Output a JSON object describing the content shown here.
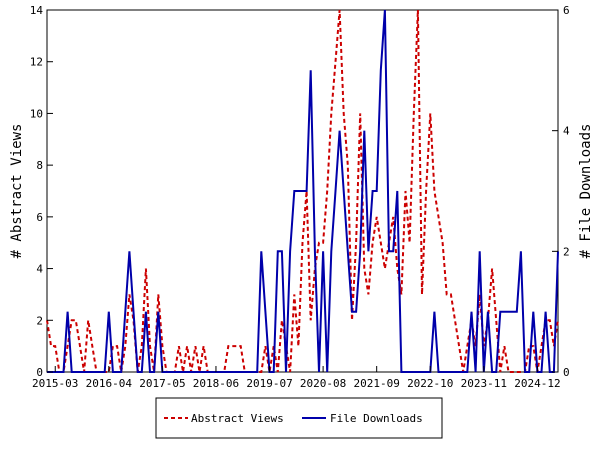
{
  "chart_data": {
    "type": "line",
    "title": "",
    "xlabel": "",
    "ylabel_left": "# Abstract Views",
    "ylabel_right": "# File Downloads",
    "x_tick_labels": [
      "2015-03",
      "2016-04",
      "2017-05",
      "2018-06",
      "2019-07",
      "2020-08",
      "2021-09",
      "2022-10",
      "2023-11",
      "2024-12"
    ],
    "x_range": [
      "2015-01",
      "2025-05"
    ],
    "ylim_left": [
      0,
      14
    ],
    "ylim_right": [
      0,
      6
    ],
    "y_ticks_left": [
      0,
      2,
      4,
      6,
      8,
      10,
      12,
      14
    ],
    "y_ticks_right": [
      0,
      2,
      4,
      6
    ],
    "grid": false,
    "legend_position": "bottom-center",
    "series": [
      {
        "name": "Abstract Views",
        "axis": "left",
        "color": "#cc0000",
        "style": "dashed",
        "points": [
          [
            "2015-01",
            2
          ],
          [
            "2015-02",
            1
          ],
          [
            "2015-03",
            1
          ],
          [
            "2015-04",
            0
          ],
          [
            "2015-05",
            0
          ],
          [
            "2015-06",
            1
          ],
          [
            "2015-07",
            2
          ],
          [
            "2015-08",
            2
          ],
          [
            "2015-09",
            1
          ],
          [
            "2015-10",
            0
          ],
          [
            "2015-11",
            2
          ],
          [
            "2015-12",
            1
          ],
          [
            "2016-01",
            0
          ],
          [
            "2016-02",
            0
          ],
          [
            "2016-03",
            0
          ],
          [
            "2016-04",
            0
          ],
          [
            "2016-05",
            1
          ],
          [
            "2016-06",
            1
          ],
          [
            "2016-07",
            0
          ],
          [
            "2016-08",
            1
          ],
          [
            "2016-09",
            3
          ],
          [
            "2016-10",
            2
          ],
          [
            "2016-11",
            0
          ],
          [
            "2016-12",
            1
          ],
          [
            "2017-01",
            4
          ],
          [
            "2017-02",
            1
          ],
          [
            "2017-03",
            0
          ],
          [
            "2017-04",
            3
          ],
          [
            "2017-05",
            1
          ],
          [
            "2017-06",
            0
          ],
          [
            "2017-07",
            0
          ],
          [
            "2017-08",
            0
          ],
          [
            "2017-09",
            1
          ],
          [
            "2017-10",
            0
          ],
          [
            "2017-11",
            1
          ],
          [
            "2017-12",
            0
          ],
          [
            "2018-01",
            1
          ],
          [
            "2018-02",
            0
          ],
          [
            "2018-03",
            1
          ],
          [
            "2018-04",
            0
          ],
          [
            "2018-05",
            0
          ],
          [
            "2018-06",
            0
          ],
          [
            "2018-07",
            0
          ],
          [
            "2018-08",
            0
          ],
          [
            "2018-09",
            1
          ],
          [
            "2018-10",
            1
          ],
          [
            "2018-11",
            1
          ],
          [
            "2018-12",
            1
          ],
          [
            "2019-01",
            0
          ],
          [
            "2019-02",
            0
          ],
          [
            "2019-03",
            0
          ],
          [
            "2019-04",
            0
          ],
          [
            "2019-05",
            0
          ],
          [
            "2019-06",
            1
          ],
          [
            "2019-07",
            0
          ],
          [
            "2019-08",
            1
          ],
          [
            "2019-09",
            0
          ],
          [
            "2019-10",
            2
          ],
          [
            "2019-11",
            1
          ],
          [
            "2019-12",
            0
          ],
          [
            "2020-01",
            3
          ],
          [
            "2020-02",
            1
          ],
          [
            "2020-03",
            5
          ],
          [
            "2020-04",
            7
          ],
          [
            "2020-05",
            2
          ],
          [
            "2020-06",
            4
          ],
          [
            "2020-07",
            5
          ],
          [
            "2020-08",
            5
          ],
          [
            "2020-09",
            7
          ],
          [
            "2020-10",
            10
          ],
          [
            "2020-11",
            12
          ],
          [
            "2020-12",
            14
          ],
          [
            "2021-01",
            10
          ],
          [
            "2021-02",
            8
          ],
          [
            "2021-03",
            2
          ],
          [
            "2021-04",
            5
          ],
          [
            "2021-05",
            10
          ],
          [
            "2021-06",
            4
          ],
          [
            "2021-07",
            3
          ],
          [
            "2021-08",
            5
          ],
          [
            "2021-09",
            6
          ],
          [
            "2021-10",
            5
          ],
          [
            "2021-11",
            4
          ],
          [
            "2021-12",
            5
          ],
          [
            "2022-01",
            6
          ],
          [
            "2022-02",
            4
          ],
          [
            "2022-03",
            3
          ],
          [
            "2022-04",
            7
          ],
          [
            "2022-05",
            5
          ],
          [
            "2022-06",
            10
          ],
          [
            "2022-07",
            14
          ],
          [
            "2022-08",
            3
          ],
          [
            "2022-09",
            7
          ],
          [
            "2022-10",
            10
          ],
          [
            "2022-11",
            7
          ],
          [
            "2022-12",
            6
          ],
          [
            "2023-01",
            5
          ],
          [
            "2023-02",
            3
          ],
          [
            "2023-03",
            3
          ],
          [
            "2023-04",
            2
          ],
          [
            "2023-05",
            1
          ],
          [
            "2023-06",
            0
          ],
          [
            "2023-07",
            1
          ],
          [
            "2023-08",
            2
          ],
          [
            "2023-09",
            1
          ],
          [
            "2023-10",
            3
          ],
          [
            "2023-11",
            1
          ],
          [
            "2023-12",
            2
          ],
          [
            "2024-01",
            4
          ],
          [
            "2024-02",
            2
          ],
          [
            "2024-03",
            0
          ],
          [
            "2024-04",
            1
          ],
          [
            "2024-05",
            0
          ],
          [
            "2024-06",
            0
          ],
          [
            "2024-07",
            0
          ],
          [
            "2024-08",
            0
          ],
          [
            "2024-09",
            0
          ],
          [
            "2024-10",
            1
          ],
          [
            "2024-11",
            1
          ],
          [
            "2024-12",
            0
          ],
          [
            "2025-01",
            1
          ],
          [
            "2025-02",
            2
          ],
          [
            "2025-03",
            2
          ],
          [
            "2025-04",
            1
          ],
          [
            "2025-05",
            2
          ]
        ]
      },
      {
        "name": "File Downloads",
        "axis": "right",
        "color": "#0000aa",
        "style": "solid",
        "points": [
          [
            "2015-01",
            0
          ],
          [
            "2015-02",
            0
          ],
          [
            "2015-03",
            0
          ],
          [
            "2015-04",
            0
          ],
          [
            "2015-05",
            0
          ],
          [
            "2015-06",
            1
          ],
          [
            "2015-07",
            0
          ],
          [
            "2015-08",
            0
          ],
          [
            "2015-09",
            0
          ],
          [
            "2015-10",
            0
          ],
          [
            "2015-11",
            0
          ],
          [
            "2015-12",
            0
          ],
          [
            "2016-01",
            0
          ],
          [
            "2016-02",
            0
          ],
          [
            "2016-03",
            0
          ],
          [
            "2016-04",
            1
          ],
          [
            "2016-05",
            0
          ],
          [
            "2016-06",
            0
          ],
          [
            "2016-07",
            0
          ],
          [
            "2016-08",
            1
          ],
          [
            "2016-09",
            2
          ],
          [
            "2016-10",
            1
          ],
          [
            "2016-11",
            0
          ],
          [
            "2016-12",
            0
          ],
          [
            "2017-01",
            1
          ],
          [
            "2017-02",
            0
          ],
          [
            "2017-03",
            0
          ],
          [
            "2017-04",
            1
          ],
          [
            "2017-05",
            0
          ],
          [
            "2017-06",
            0
          ],
          [
            "2017-07",
            0
          ],
          [
            "2017-08",
            0
          ],
          [
            "2017-09",
            0
          ],
          [
            "2017-10",
            0
          ],
          [
            "2017-11",
            0
          ],
          [
            "2017-12",
            0
          ],
          [
            "2018-01",
            0
          ],
          [
            "2018-02",
            0
          ],
          [
            "2018-03",
            0
          ],
          [
            "2018-04",
            0
          ],
          [
            "2018-05",
            0
          ],
          [
            "2018-06",
            0
          ],
          [
            "2018-07",
            0
          ],
          [
            "2018-08",
            0
          ],
          [
            "2018-09",
            0
          ],
          [
            "2018-10",
            0
          ],
          [
            "2018-11",
            0
          ],
          [
            "2018-12",
            0
          ],
          [
            "2019-01",
            0
          ],
          [
            "2019-02",
            0
          ],
          [
            "2019-03",
            0
          ],
          [
            "2019-04",
            0
          ],
          [
            "2019-05",
            2
          ],
          [
            "2019-06",
            1
          ],
          [
            "2019-07",
            0
          ],
          [
            "2019-08",
            0
          ],
          [
            "2019-09",
            2
          ],
          [
            "2019-10",
            2
          ],
          [
            "2019-11",
            0
          ],
          [
            "2019-12",
            2
          ],
          [
            "2020-01",
            3
          ],
          [
            "2020-02",
            3
          ],
          [
            "2020-03",
            3
          ],
          [
            "2020-04",
            3
          ],
          [
            "2020-05",
            5
          ],
          [
            "2020-06",
            2
          ],
          [
            "2020-07",
            0
          ],
          [
            "2020-08",
            2
          ],
          [
            "2020-09",
            0
          ],
          [
            "2020-10",
            2
          ],
          [
            "2020-11",
            3
          ],
          [
            "2020-12",
            4
          ],
          [
            "2021-01",
            3
          ],
          [
            "2021-02",
            2
          ],
          [
            "2021-03",
            1
          ],
          [
            "2021-04",
            1
          ],
          [
            "2021-05",
            2
          ],
          [
            "2021-06",
            4
          ],
          [
            "2021-07",
            2
          ],
          [
            "2021-08",
            3
          ],
          [
            "2021-09",
            3
          ],
          [
            "2021-10",
            5
          ],
          [
            "2021-11",
            6
          ],
          [
            "2021-12",
            2
          ],
          [
            "2022-01",
            2
          ],
          [
            "2022-02",
            3
          ],
          [
            "2022-03",
            0
          ],
          [
            "2022-04",
            0
          ],
          [
            "2022-05",
            0
          ],
          [
            "2022-06",
            0
          ],
          [
            "2022-07",
            0
          ],
          [
            "2022-08",
            0
          ],
          [
            "2022-09",
            0
          ],
          [
            "2022-10",
            0
          ],
          [
            "2022-11",
            1
          ],
          [
            "2022-12",
            0
          ],
          [
            "2023-01",
            0
          ],
          [
            "2023-02",
            0
          ],
          [
            "2023-03",
            0
          ],
          [
            "2023-04",
            0
          ],
          [
            "2023-05",
            0
          ],
          [
            "2023-06",
            0
          ],
          [
            "2023-07",
            0
          ],
          [
            "2023-08",
            1
          ],
          [
            "2023-09",
            0
          ],
          [
            "2023-10",
            2
          ],
          [
            "2023-11",
            0
          ],
          [
            "2023-12",
            1
          ],
          [
            "2024-01",
            0
          ],
          [
            "2024-02",
            0
          ],
          [
            "2024-03",
            1
          ],
          [
            "2024-04",
            1
          ],
          [
            "2024-05",
            1
          ],
          [
            "2024-06",
            1
          ],
          [
            "2024-07",
            1
          ],
          [
            "2024-08",
            2
          ],
          [
            "2024-09",
            0
          ],
          [
            "2024-10",
            0
          ],
          [
            "2024-11",
            1
          ],
          [
            "2024-12",
            0
          ],
          [
            "2025-01",
            0
          ],
          [
            "2025-02",
            1
          ],
          [
            "2025-03",
            0
          ],
          [
            "2025-04",
            0
          ],
          [
            "2025-05",
            2
          ]
        ]
      }
    ]
  }
}
